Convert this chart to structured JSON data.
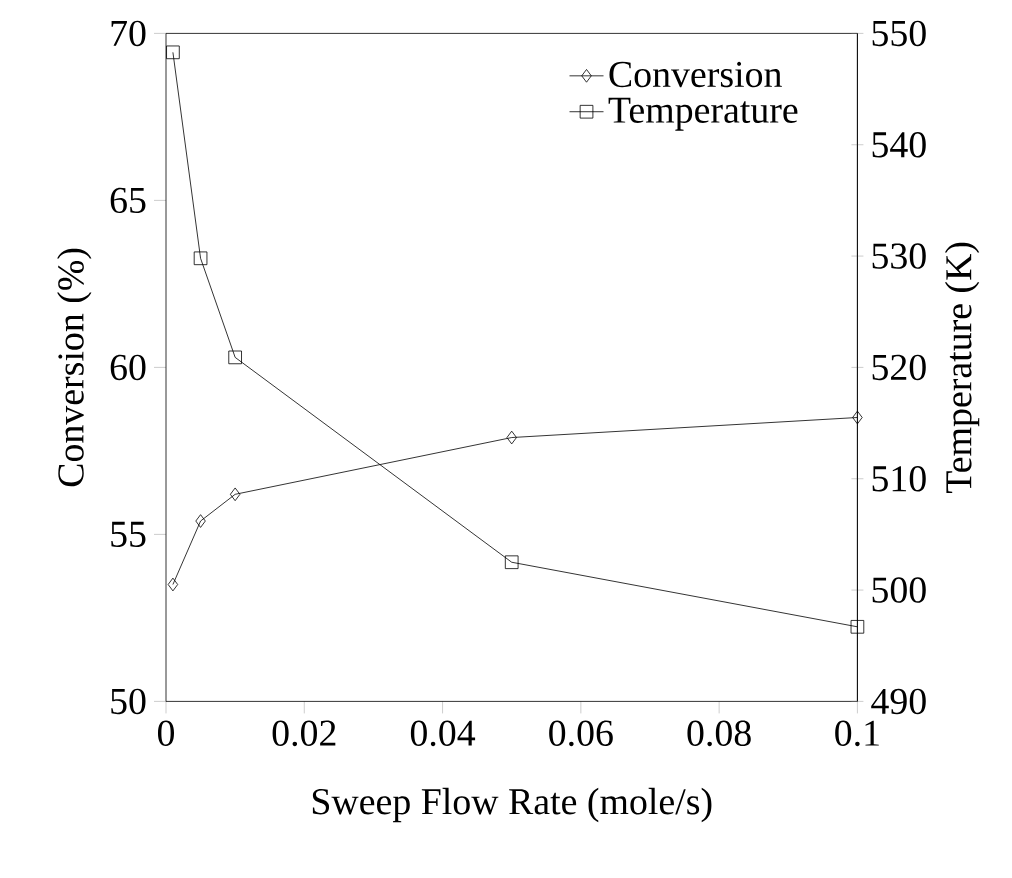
{
  "chart_data": {
    "type": "line",
    "xlabel": "Sweep Flow Rate (mole/s)",
    "ylabel": "Conversion (%)",
    "y2label": "Temperature (K)",
    "x": [
      0.001,
      0.005,
      0.01,
      0.05,
      0.1
    ],
    "series": [
      {
        "name": "Conversion",
        "color": "#000000",
        "marker": "diamond",
        "values": [
          53.5,
          55.4,
          56.2,
          57.9,
          58.5
        ]
      },
      {
        "name": "Temperature",
        "color": "#000000",
        "marker": "square",
        "axis": "y2",
        "values": [
          548.3,
          529.8,
          520.9,
          502.5,
          496.7
        ]
      }
    ],
    "xlim": [
      0,
      0.1
    ],
    "xticks": [
      0,
      0.02,
      0.04,
      0.06,
      0.08,
      0.1
    ],
    "ylim": [
      50,
      70
    ],
    "yticks": [
      50,
      55,
      60,
      65,
      70
    ],
    "y2lim": [
      490,
      550
    ],
    "y2ticks": [
      490,
      500,
      510,
      520,
      530,
      540,
      550
    ],
    "legend": "top right",
    "grid": false,
    "line_style": "solid"
  }
}
